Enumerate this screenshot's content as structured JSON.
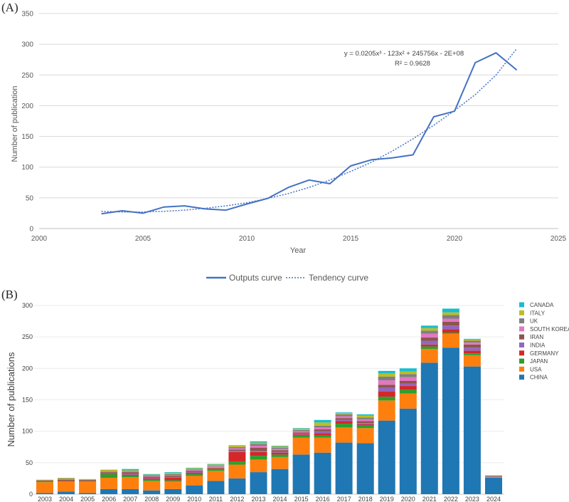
{
  "chart_data": [
    {
      "panel": "(A)",
      "type": "line",
      "xlabel": "Year",
      "ylabel": "Number of publication",
      "xlim": [
        2000,
        2025
      ],
      "ylim": [
        0,
        350
      ],
      "xticks": [
        2000,
        2005,
        2010,
        2015,
        2020,
        2025
      ],
      "yticks": [
        0,
        50,
        100,
        150,
        200,
        250,
        300,
        350
      ],
      "x": [
        2003,
        2004,
        2005,
        2006,
        2007,
        2008,
        2009,
        2010,
        2011,
        2012,
        2013,
        2014,
        2015,
        2016,
        2017,
        2018,
        2019,
        2020,
        2021,
        2022,
        2023
      ],
      "series": [
        {
          "name": "Outputs curve",
          "style": "solid",
          "color": "#4472C4",
          "values": [
            24,
            29,
            25,
            35,
            37,
            32,
            30,
            40,
            49,
            67,
            79,
            73,
            102,
            112,
            115,
            120,
            182,
            191,
            270,
            286,
            258
          ]
        },
        {
          "name": "Tendency curve",
          "style": "dotted",
          "color": "#4472C4",
          "values": [
            28,
            27,
            27,
            28,
            30,
            33,
            37,
            42,
            49,
            57,
            67,
            79,
            93,
            108,
            126,
            146,
            168,
            192,
            218,
            250,
            293
          ]
        }
      ],
      "equation": "y = 0.0205x³ - 123x² + 245756x - 2E+08",
      "r_squared": "R² = 0.9628",
      "legend_position": "bottom"
    },
    {
      "panel": "(B)",
      "type": "bar",
      "stacked": true,
      "ylabel": "Number of publications",
      "ylim": [
        0,
        300
      ],
      "yticks": [
        0,
        50,
        100,
        150,
        200,
        250,
        300
      ],
      "categories": [
        "2003",
        "2004",
        "2005",
        "2006",
        "2007",
        "2008",
        "2009",
        "2010",
        "2011",
        "2012",
        "2013",
        "2014",
        "2015",
        "2016",
        "2017",
        "2018",
        "2019",
        "2020",
        "2021",
        "2022",
        "2023",
        "2024"
      ],
      "legend_position": "right",
      "series": [
        {
          "name": "CHINA",
          "color": "#1F77B4",
          "values": [
            2,
            4,
            2,
            8,
            8,
            6,
            8,
            14,
            21,
            25,
            35,
            40,
            63,
            66,
            82,
            81,
            117,
            136,
            209,
            233,
            203,
            26
          ]
        },
        {
          "name": "USA",
          "color": "#FF7F0E",
          "values": [
            17,
            16,
            18,
            18,
            19,
            15,
            12,
            15,
            16,
            22,
            20,
            19,
            27,
            24,
            24,
            24,
            32,
            24,
            22,
            22,
            18,
            1
          ]
        },
        {
          "name": "JAPAN",
          "color": "#2CA02C",
          "values": [
            1,
            1,
            1,
            6,
            3,
            2,
            2,
            3,
            3,
            5,
            6,
            4,
            3,
            3,
            6,
            4,
            6,
            6,
            4,
            2,
            3,
            0
          ]
        },
        {
          "name": "GERMANY",
          "color": "#D62728",
          "values": [
            1,
            1,
            1,
            1,
            1,
            2,
            4,
            2,
            1,
            15,
            6,
            3,
            2,
            4,
            4,
            2,
            8,
            6,
            3,
            5,
            4,
            0
          ]
        },
        {
          "name": "INDIA",
          "color": "#9467BD",
          "values": [
            0,
            0,
            0,
            0,
            1,
            1,
            1,
            1,
            0,
            2,
            2,
            1,
            1,
            3,
            2,
            2,
            6,
            4,
            6,
            6,
            5,
            1
          ]
        },
        {
          "name": "IRAN",
          "color": "#8C564B",
          "values": [
            0,
            1,
            0,
            2,
            3,
            2,
            2,
            2,
            1,
            2,
            5,
            3,
            2,
            3,
            3,
            3,
            5,
            4,
            5,
            6,
            5,
            1
          ]
        },
        {
          "name": "SOUTH KOREA",
          "color": "#E377C2",
          "values": [
            0,
            1,
            0,
            1,
            1,
            1,
            1,
            1,
            2,
            2,
            3,
            2,
            2,
            3,
            3,
            3,
            7,
            6,
            6,
            5,
            3,
            0
          ]
        },
        {
          "name": "UK",
          "color": "#7F7F7F",
          "values": [
            1,
            1,
            1,
            1,
            1,
            1,
            2,
            1,
            1,
            2,
            3,
            2,
            2,
            3,
            3,
            3,
            6,
            5,
            5,
            6,
            3,
            0
          ]
        },
        {
          "name": "ITALY",
          "color": "#BCBD22",
          "values": [
            1,
            1,
            1,
            2,
            1,
            1,
            2,
            2,
            2,
            3,
            2,
            2,
            2,
            5,
            2,
            3,
            5,
            4,
            4,
            4,
            2,
            1
          ]
        },
        {
          "name": "CANADA",
          "color": "#17BECF",
          "values": [
            0,
            0,
            0,
            0,
            2,
            1,
            1,
            1,
            1,
            0,
            2,
            1,
            1,
            4,
            1,
            2,
            4,
            5,
            4,
            6,
            1,
            0
          ]
        }
      ]
    }
  ]
}
